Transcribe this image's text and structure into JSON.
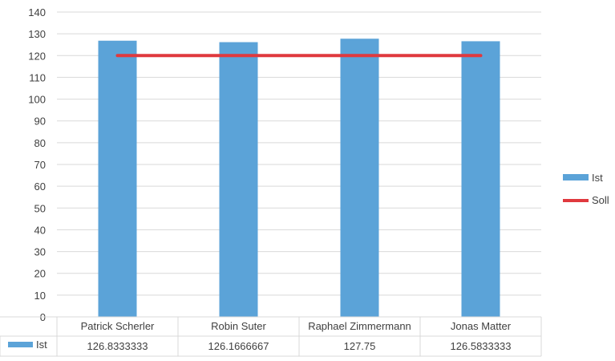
{
  "chart_data": {
    "type": "bar",
    "categories": [
      "Patrick Scherler",
      "Robin Suter",
      "Raphael Zimmermann",
      "Jonas Matter"
    ],
    "series": [
      {
        "name": "Ist",
        "kind": "bar",
        "values": [
          126.8333333,
          126.1666667,
          127.75,
          126.5833333
        ],
        "color": "#5ba3d8"
      },
      {
        "name": "Soll",
        "kind": "line",
        "values": [
          120,
          120,
          120,
          120
        ],
        "color": "#e0393e"
      }
    ],
    "ylim": [
      0,
      140
    ],
    "yticks": [
      0,
      10,
      20,
      30,
      40,
      50,
      60,
      70,
      80,
      90,
      100,
      110,
      120,
      130,
      140
    ],
    "grid": true,
    "legend_position": "right",
    "data_table": {
      "series": "Ist",
      "values": [
        "126.8333333",
        "126.1666667",
        "127.75",
        "126.5833333"
      ]
    }
  },
  "colors": {
    "grid": "#d9d9d9",
    "text": "#404040"
  }
}
